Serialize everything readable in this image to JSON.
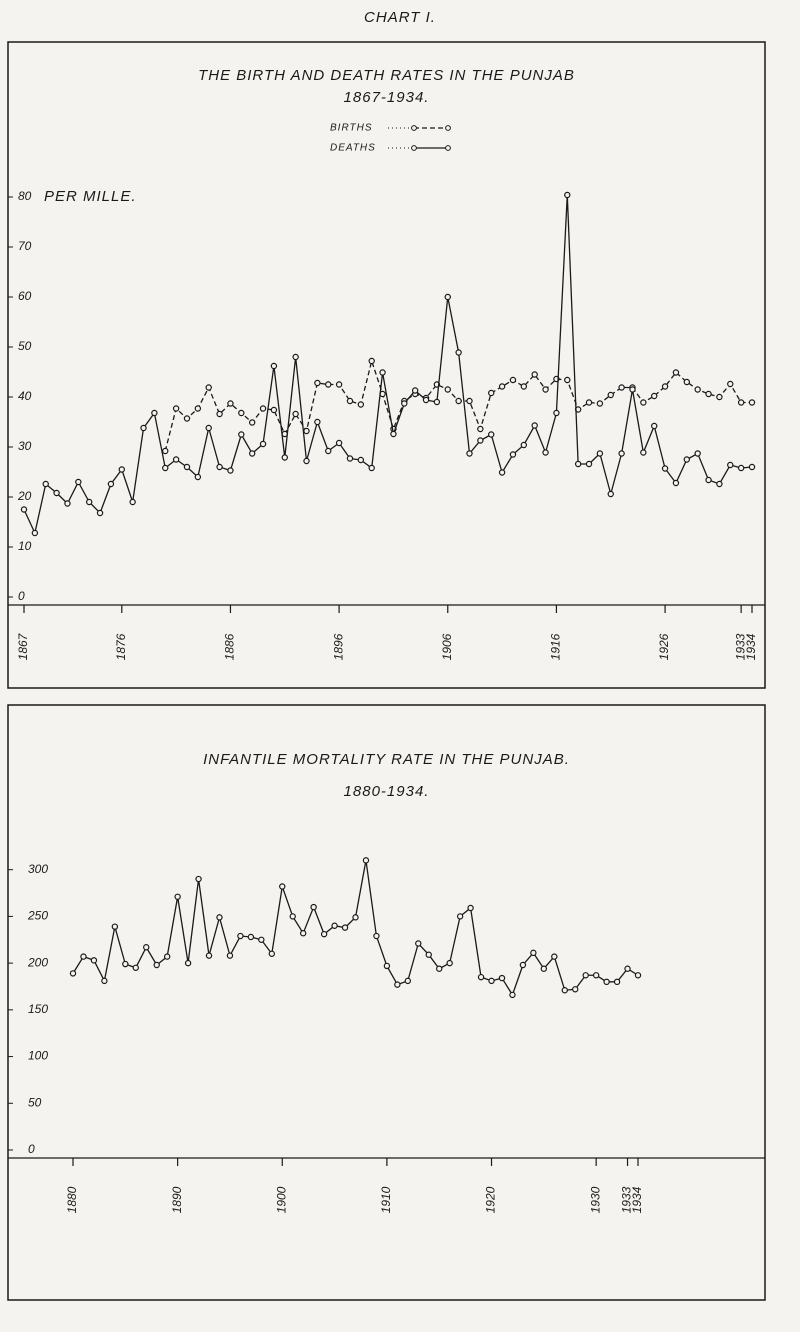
{
  "header": "CHART I.",
  "chart_data": [
    {
      "type": "line",
      "title": "THE BIRTH AND DEATH RATES IN THE PUNJAB",
      "subtitle": "1867-1934.",
      "ylabel": "PER MILLE.",
      "x": [
        1867,
        1868,
        1869,
        1870,
        1871,
        1872,
        1873,
        1874,
        1875,
        1876,
        1877,
        1878,
        1879,
        1880,
        1881,
        1882,
        1883,
        1884,
        1885,
        1886,
        1887,
        1888,
        1889,
        1890,
        1891,
        1892,
        1893,
        1894,
        1895,
        1896,
        1897,
        1898,
        1899,
        1900,
        1901,
        1902,
        1903,
        1904,
        1905,
        1906,
        1907,
        1908,
        1909,
        1910,
        1911,
        1912,
        1913,
        1914,
        1915,
        1916,
        1917,
        1918,
        1919,
        1920,
        1921,
        1922,
        1923,
        1924,
        1925,
        1926,
        1927,
        1928,
        1929,
        1930,
        1931,
        1932,
        1933,
        1934
      ],
      "series": [
        {
          "name": "BIRTHS",
          "color": "#1a1a1a",
          "dash": true,
          "values": [
            null,
            null,
            null,
            null,
            null,
            null,
            null,
            null,
            null,
            null,
            null,
            null,
            null,
            29.2,
            37.7,
            35.7,
            37.7,
            41.9,
            36.6,
            38.7,
            36.8,
            34.9,
            37.7,
            37.4,
            32.6,
            36.6,
            33.2,
            42.8,
            42.5,
            42.5,
            39.2,
            38.5,
            47.2,
            40.6,
            33.6,
            39.2,
            40.6,
            39.8,
            42.5,
            41.5,
            39.2,
            39.2,
            33.6,
            40.8,
            42.1,
            43.4,
            42.1,
            44.5,
            41.5,
            43.6,
            43.4,
            37.5,
            38.9,
            38.7,
            40.4,
            41.9,
            41.9,
            38.9,
            40.2,
            42.1,
            44.9,
            43,
            41.5,
            40.6,
            40,
            42.6,
            38.9,
            38.9
          ]
        },
        {
          "name": "DEATHS",
          "color": "#1a1a1a",
          "dash": false,
          "values": [
            17.5,
            12.8,
            22.6,
            20.8,
            18.7,
            23,
            19,
            16.8,
            22.6,
            25.5,
            19,
            33.8,
            36.8,
            25.8,
            27.5,
            26,
            24,
            33.8,
            26,
            25.3,
            32.5,
            28.7,
            30.6,
            46.2,
            27.9,
            48,
            27.2,
            35,
            29.2,
            30.8,
            27.7,
            27.4,
            25.8,
            44.9,
            32.6,
            38.7,
            41.3,
            39.4,
            39,
            60,
            48.9,
            28.7,
            31.3,
            32.5,
            24.9,
            28.5,
            30.4,
            34.3,
            28.9,
            36.8,
            80.4,
            26.6,
            26.6,
            28.7,
            20.6,
            28.7,
            41.5,
            28.9,
            34.2,
            25.7,
            22.8,
            27.5,
            28.7,
            23.4,
            22.6,
            26.4,
            25.8,
            26
          ]
        }
      ],
      "xlim": [
        1867,
        1934
      ],
      "xticks": [
        1867,
        1876,
        1886,
        1896,
        1906,
        1916,
        1926,
        1933,
        1934
      ],
      "ylim": [
        0,
        85
      ],
      "yticks": [
        0,
        10,
        20,
        30,
        40,
        50,
        60,
        70,
        80
      ]
    },
    {
      "type": "line",
      "title": "INFANTILE MORTALITY RATE IN THE PUNJAB.",
      "subtitle": "1880-1934.",
      "x": [
        1880,
        1881,
        1882,
        1883,
        1884,
        1885,
        1886,
        1887,
        1888,
        1889,
        1890,
        1891,
        1892,
        1893,
        1894,
        1895,
        1896,
        1897,
        1898,
        1899,
        1900,
        1901,
        1902,
        1903,
        1904,
        1905,
        1906,
        1907,
        1908,
        1909,
        1910,
        1911,
        1912,
        1913,
        1914,
        1915,
        1916,
        1917,
        1918,
        1919,
        1920,
        1921,
        1922,
        1923,
        1924,
        1925,
        1926,
        1927,
        1928,
        1929,
        1930,
        1931,
        1932,
        1933,
        1934
      ],
      "values": [
        189,
        207,
        203,
        181,
        239,
        199,
        195,
        217,
        198,
        207,
        271,
        200,
        290,
        208,
        249,
        208,
        229,
        228,
        225,
        210,
        282,
        250,
        232,
        260,
        231,
        240,
        238,
        249,
        310,
        229,
        197,
        177,
        181,
        221,
        209,
        194,
        200,
        250,
        259,
        185,
        181,
        184,
        166,
        198,
        211,
        194,
        207,
        171,
        172,
        187,
        187,
        180,
        180,
        194,
        187
      ],
      "color": "#1a1a1a",
      "xlim": [
        1880,
        1934
      ],
      "xticks": [
        1880,
        1890,
        1900,
        1910,
        1920,
        1930,
        1933,
        1934
      ],
      "ylim": [
        0,
        320
      ],
      "yticks": [
        0,
        50,
        100,
        150,
        200,
        250,
        300
      ]
    }
  ]
}
